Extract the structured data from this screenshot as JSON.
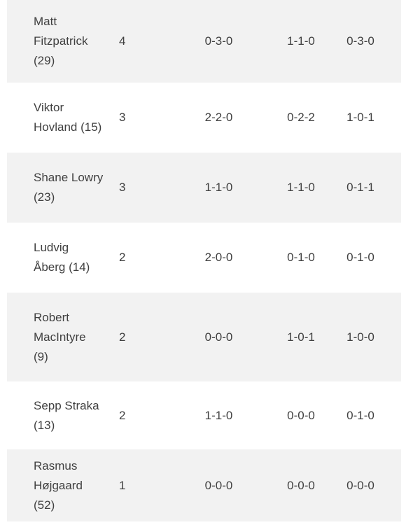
{
  "colors": {
    "page_bg": "#ffffff",
    "row_alt_bg": "#f2f2f2",
    "text": "#404040"
  },
  "table": {
    "rows": [
      {
        "name": "Matt\nFitzpatrick\n(29)",
        "points": "4",
        "record1": "0-3-0",
        "record2": "1-1-0",
        "record3": "0-3-0"
      },
      {
        "name": "Viktor\nHovland (15)",
        "points": "3",
        "record1": "2-2-0",
        "record2": "0-2-2",
        "record3": "1-0-1"
      },
      {
        "name": "Shane Lowry\n(23)",
        "points": "3",
        "record1": "1-1-0",
        "record2": "1-1-0",
        "record3": "0-1-1"
      },
      {
        "name": "Ludvig\nÅberg (14)",
        "points": "2",
        "record1": "2-0-0",
        "record2": "0-1-0",
        "record3": "0-1-0"
      },
      {
        "name": "Robert\nMacIntyre\n(9)",
        "points": "2",
        "record1": "0-0-0",
        "record2": "1-0-1",
        "record3": "1-0-0"
      },
      {
        "name": "Sepp Straka\n(13)",
        "points": "2",
        "record1": "1-1-0",
        "record2": "0-0-0",
        "record3": "0-1-0"
      },
      {
        "name": "Rasmus\nHøjgaard\n(52)",
        "points": "1",
        "record1": "0-0-0",
        "record2": "0-0-0",
        "record3": "0-0-0"
      }
    ]
  }
}
